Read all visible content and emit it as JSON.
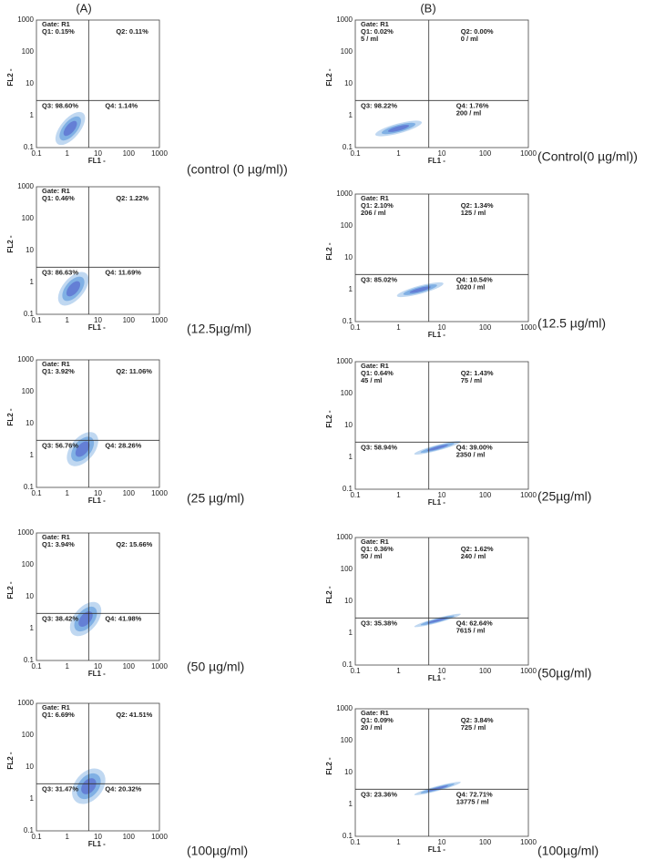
{
  "columns": [
    {
      "label": "(A)",
      "panels": [
        {
          "gate": "Gate: R1",
          "q1": "Q1: 0.15%",
          "q2": "Q2: 0.11%",
          "q3": "Q3: 98.60%",
          "q4": "Q4: 1.14%",
          "concentration": "(control (0 µg/ml))"
        },
        {
          "gate": "Gate: R1",
          "q1": "Q1: 0.46%",
          "q2": "Q2: 1.22%",
          "q3": "Q3: 86.63%",
          "q4": "Q4: 11.69%",
          "concentration": "(12.5µg/ml)"
        },
        {
          "gate": "Gate: R1",
          "q1": "Q1: 3.92%",
          "q2": "Q2: 11.06%",
          "q3": "Q3: 56.76%",
          "q4": "Q4: 28.26%",
          "concentration": "(25 µg/ml)"
        },
        {
          "gate": "Gate: R1",
          "q1": "Q1: 3.94%",
          "q2": "Q2: 15.66%",
          "q3": "Q3: 38.42%",
          "q4": "Q4: 41.98%",
          "concentration": "(50 µg/ml)"
        },
        {
          "gate": "Gate: R1",
          "q1": "Q1: 6.69%",
          "q2": "Q2: 41.51%",
          "q3": "Q3: 31.47%",
          "q4": "Q4: 20.32%",
          "concentration": "(100µg/ml)"
        }
      ]
    },
    {
      "label": "(B)",
      "panels": [
        {
          "gate": "Gate: R1",
          "q1": "Q1: 0.02%",
          "q1_count": "5 / ml",
          "q2": "Q2: 0.00%",
          "q2_count": "0 / ml",
          "q3": "Q3: 98.22%",
          "q4": "Q4: 1.76%",
          "q4_count": "200 / ml",
          "concentration": "(Control(0 µg/ml))"
        },
        {
          "gate": "Gate: R1",
          "q1": "Q1: 2.10%",
          "q1_count": "206 / ml",
          "q2": "Q2: 1.34%",
          "q2_count": "125 / ml",
          "q3": "Q3: 85.02%",
          "q4": "Q4: 10.54%",
          "q4_count": "1020 / ml",
          "concentration": "(12.5 µg/ml)"
        },
        {
          "gate": "Gate: R1",
          "q1": "Q1: 0.64%",
          "q1_count": "45 / ml",
          "q2": "Q2: 1.43%",
          "q2_count": "75 / ml",
          "q3": "Q3: 58.94%",
          "q4": "Q4: 39.00%",
          "q4_count": "2350 / ml",
          "concentration": "(25µg/ml)"
        },
        {
          "gate": "Gate: R1",
          "q1": "Q1: 0.36%",
          "q1_count": "50 / ml",
          "q2": "Q2: 1.62%",
          "q2_count": "240 / ml",
          "q3": "Q3: 35.38%",
          "q4": "Q4: 62.64%",
          "q4_count": "7615 / ml",
          "concentration": "(50µg/ml)"
        },
        {
          "gate": "Gate: R1",
          "q1": "Q1: 0.09%",
          "q1_count": "20 / ml",
          "q2": "Q2: 3.84%",
          "q2_count": "725 / ml",
          "q3": "Q3: 23.36%",
          "q4": "Q4: 72.71%",
          "q4_count": "13775 / ml",
          "concentration": "(100µg/ml)"
        }
      ]
    }
  ],
  "x_axis": "FL1 -",
  "y_axis": "FL2 -",
  "x_ticks": [
    "0.1",
    "1",
    "10",
    "100",
    "1000"
  ],
  "y_ticks": [
    "0.1",
    "1",
    "10",
    "100",
    "1000"
  ]
}
